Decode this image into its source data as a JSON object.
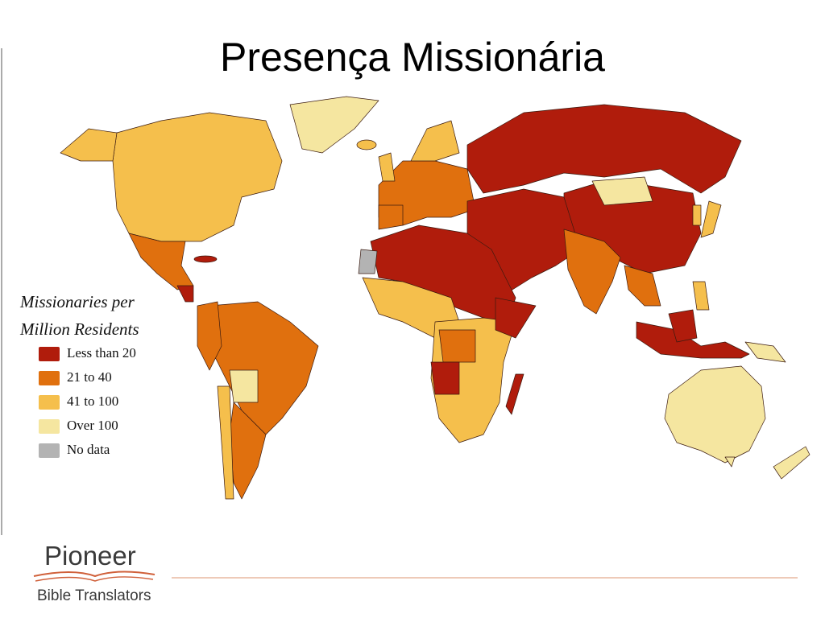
{
  "title": "Presença Missionária",
  "legend": {
    "title_lines": [
      "Missionaries per",
      "Million Residents"
    ],
    "items": [
      {
        "label": "Less than 20",
        "color": "#b01c0c"
      },
      {
        "label": "21 to 40",
        "color": "#e0700e"
      },
      {
        "label": "41 to 100",
        "color": "#f5bf4c"
      },
      {
        "label": "Over 100",
        "color": "#f5e6a0"
      },
      {
        "label": "No data",
        "color": "#b3b3b3"
      }
    ]
  },
  "logo": {
    "name": "Pioneer",
    "subtitle": "Bible Translators"
  }
}
